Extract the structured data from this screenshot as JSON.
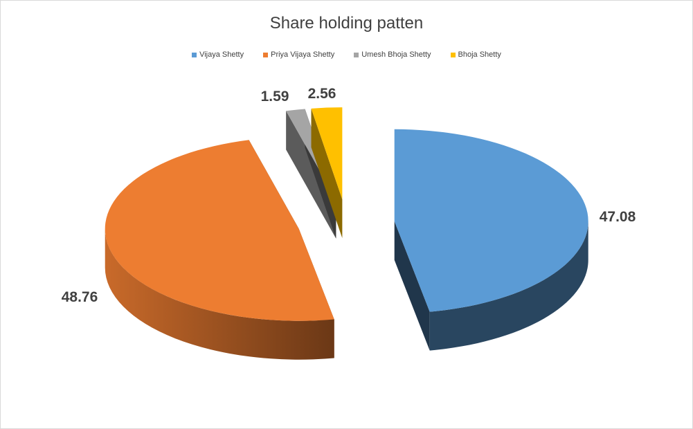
{
  "chart_data": {
    "type": "pie",
    "style": "3d-exploded",
    "title": "Share holding patten",
    "legend_position": "top",
    "series": [
      {
        "name": "Vijaya Shetty",
        "value": 47.08,
        "label": "47.08",
        "color": "#5b9bd5"
      },
      {
        "name": "Priya Vijaya Shetty",
        "value": 48.76,
        "label": "48.76",
        "color": "#ed7d31"
      },
      {
        "name": "Umesh Bhoja Shetty",
        "value": 1.59,
        "label": "1.59",
        "color": "#a5a5a5"
      },
      {
        "name": "Bhoja Shetty",
        "value": 2.56,
        "label": "2.56",
        "color": "#ffc000"
      }
    ]
  }
}
